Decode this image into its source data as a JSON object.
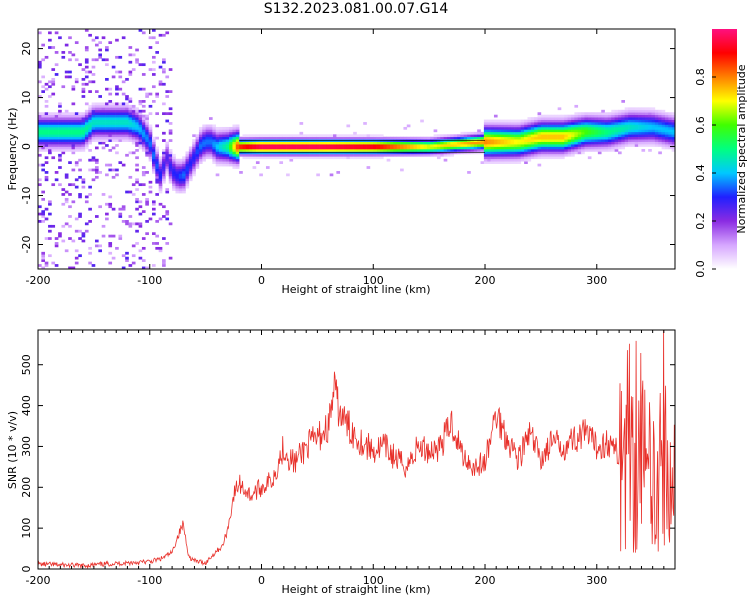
{
  "title": "S132.2023.081.00.07.G14",
  "chart_data": [
    {
      "type": "heatmap",
      "xlabel": "Height of straight line (km)",
      "ylabel": "Frequency (Hz)",
      "xlim": [
        -200,
        370
      ],
      "ylim": [
        -25,
        24
      ],
      "xticks": [
        -200,
        -100,
        0,
        100,
        200,
        300
      ],
      "yticks": [
        -20,
        -10,
        0,
        10,
        20
      ],
      "colorbar": {
        "label": "Normalized spectral amplitude",
        "range": [
          0,
          1
        ],
        "ticks": [
          "0.0",
          "0.2",
          "0.4",
          "0.6",
          "0.8"
        ],
        "colors": [
          "#ffffff",
          "#d6a6ff",
          "#8a2be2",
          "#2020ff",
          "#00c8ff",
          "#00ff80",
          "#40ff00",
          "#ffff00",
          "#ff8000",
          "#ff0000",
          "#ff1080"
        ]
      },
      "ridge": {
        "x": [
          -160,
          -150,
          -140,
          -130,
          -120,
          -110,
          -100,
          -95,
          -90,
          -85,
          -80,
          -75,
          -70,
          -65,
          -60,
          -55,
          -50,
          -45,
          -40,
          -30,
          -20,
          0,
          50,
          100,
          150,
          200,
          230,
          250,
          270,
          290,
          310,
          330,
          350,
          370
        ],
        "y": [
          3,
          5,
          5,
          5,
          5,
          4,
          1,
          -3,
          -6,
          -2,
          -5,
          -6,
          -6,
          -4,
          -2,
          0,
          1,
          1,
          0,
          0,
          0,
          0,
          0,
          0,
          0,
          1,
          1,
          2,
          2,
          3,
          3,
          4,
          4,
          3
        ],
        "weight": [
          0.5,
          0.45,
          0.45,
          0.45,
          0.45,
          0.4,
          0.35,
          0.35,
          0.3,
          0.25,
          0.3,
          0.3,
          0.35,
          0.3,
          0.3,
          0.35,
          0.35,
          0.35,
          0.4,
          0.5,
          0.9,
          1.0,
          1.0,
          0.95,
          0.7,
          0.8,
          0.7,
          0.75,
          0.75,
          0.6,
          0.5,
          0.45,
          0.4,
          0.4
        ]
      }
    },
    {
      "type": "line",
      "xlabel": "Height of straight line (km)",
      "ylabel": "SNR (10 * v/v)",
      "xlim": [
        -200,
        370
      ],
      "ylim": [
        0,
        585
      ],
      "xticks": [
        -200,
        -100,
        0,
        100,
        200,
        300
      ],
      "yticks": [
        0,
        100,
        200,
        300,
        400,
        500
      ],
      "color": "#e8302a",
      "series": [
        {
          "x": [
            -200,
            -180,
            -160,
            -140,
            -120,
            -100,
            -90,
            -80,
            -75,
            -70,
            -65,
            -60,
            -50,
            -45,
            -40,
            -35,
            -30,
            -25,
            -20,
            -10,
            0,
            10,
            20,
            25,
            30,
            40,
            50,
            60,
            65,
            70,
            80,
            90,
            100,
            110,
            120,
            130,
            140,
            150,
            160,
            170,
            180,
            190,
            200,
            210,
            220,
            230,
            240,
            250,
            260,
            270,
            280,
            290,
            300,
            310,
            320,
            330,
            340,
            345,
            350,
            355,
            360,
            365,
            370
          ],
          "y": [
            12,
            10,
            8,
            12,
            15,
            18,
            25,
            40,
            80,
            110,
            30,
            20,
            15,
            30,
            45,
            55,
            100,
            180,
            210,
            180,
            200,
            220,
            300,
            270,
            260,
            300,
            320,
            350,
            440,
            380,
            340,
            310,
            290,
            300,
            270,
            250,
            300,
            290,
            300,
            360,
            280,
            250,
            260,
            380,
            320,
            270,
            330,
            270,
            310,
            300,
            320,
            330,
            300,
            310,
            280,
            320,
            340,
            200,
            320,
            180,
            330,
            150,
            250
          ]
        }
      ]
    }
  ]
}
